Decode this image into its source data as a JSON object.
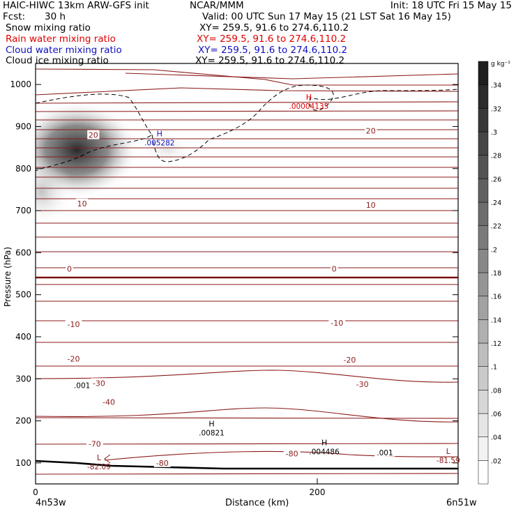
{
  "header": {
    "model": "HAIC-HIWC 13km ARW-GFS init",
    "org": "NCAR/MMM",
    "init": "Init: 18 UTC Fri 15 May 15",
    "fcst_label": "Fcst:",
    "fcst_value": "30 h",
    "valid": "Valid: 00 UTC Sun 17 May 15 (21 LST Sat 16 May 15)",
    "fields": [
      {
        "name": "Snow mixing ratio",
        "xy": "XY= 259.5, 91.6 to 274.6,110.2",
        "color": "#000000"
      },
      {
        "name": "Rain water mixing ratio",
        "xy": "XY= 259.5, 91.6 to 274.6,110.2",
        "color": "#e00000"
      },
      {
        "name": "Cloud water mixing ratio",
        "xy": "XY= 259.5, 91.6 to 274.6,110.2",
        "color": "#1010c0"
      },
      {
        "name": "Cloud ice mixing ratio",
        "xy": "XY= 259.5, 91.6 to 274.6,110.2",
        "color": "#000000"
      }
    ]
  },
  "chart_data": {
    "type": "heatmap",
    "subtype": "vertical cross-section",
    "xlabel": "Distance (km)",
    "ylabel": "Pressure (hPa)",
    "x_range": [
      0,
      300
    ],
    "x_ticks": [
      0,
      200
    ],
    "y_range": [
      1050,
      50
    ],
    "y_ticks": [
      100,
      200,
      300,
      400,
      500,
      600,
      700,
      800,
      900,
      1000
    ],
    "left_endpoint": "4n53w",
    "right_endpoint": "6n51w",
    "colorbar": {
      "unit": "g kg⁻¹",
      "levels": [
        ".02",
        ".04",
        ".06",
        ".08",
        ".1",
        ".12",
        ".14",
        ".16",
        ".18",
        ".2",
        ".22",
        ".24",
        ".26",
        ".28",
        ".3",
        ".32",
        ".34"
      ],
      "colors": [
        "#ffffff",
        "#d8d8d8"
      ]
    },
    "temperature_contours": {
      "color": "#8b1a1a",
      "labels": [
        {
          "text": "-80",
          "x": 90,
          "p": 100
        },
        {
          "text": "-80",
          "x": 182,
          "p": 122
        },
        {
          "text": "-70",
          "x": 42,
          "p": 145
        },
        {
          "text": "-40",
          "x": 52,
          "p": 245
        },
        {
          "text": "-30",
          "x": 45,
          "p": 290
        },
        {
          "text": "-30",
          "x": 232,
          "p": 287
        },
        {
          "text": "-20",
          "x": 27,
          "p": 348
        },
        {
          "text": "-20",
          "x": 223,
          "p": 345
        },
        {
          "text": "-10",
          "x": 27,
          "p": 430
        },
        {
          "text": "-10",
          "x": 214,
          "p": 433
        },
        {
          "text": "0",
          "x": 24,
          "p": 562
        },
        {
          "text": "0",
          "x": 212,
          "p": 562
        },
        {
          "text": "10",
          "x": 33,
          "p": 717
        },
        {
          "text": "10",
          "x": 238,
          "p": 713
        },
        {
          "text": "20",
          "x": 41,
          "p": 880
        },
        {
          "text": "20",
          "x": 238,
          "p": 890
        }
      ],
      "extrema": [
        {
          "type": "L",
          "value": "-82.09",
          "x": 45,
          "p": 100
        },
        {
          "type": "L",
          "value": "-81.59",
          "x": 293,
          "p": 115
        }
      ]
    },
    "cloud_ice_contour": {
      "label": ".001",
      "style": "dashed",
      "labels": [
        {
          "text": ".001",
          "x": 33,
          "p": 285
        },
        {
          "text": ".001",
          "x": 248,
          "p": 125
        }
      ],
      "maxima": [
        {
          "type": "H",
          "value": ".00821",
          "x": 125,
          "p": 180
        },
        {
          "type": "H",
          "value": ".004486",
          "x": 205,
          "p": 135
        }
      ]
    },
    "cloud_water_max": {
      "type": "H",
      "value": ".005282",
      "x": 88,
      "p": 870
    },
    "rain_water_max": {
      "type": "H",
      "value": ".00004135",
      "x": 194,
      "p": 957
    }
  }
}
